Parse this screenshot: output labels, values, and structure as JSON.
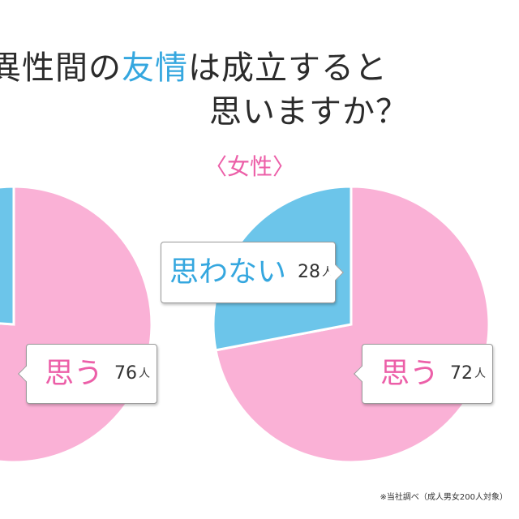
{
  "title": {
    "line1_seg1": "異性間",
    "line1_seg2": "の",
    "line1_seg3": "友情",
    "line1_seg4": "は成立すると",
    "line2": "思いますか？"
  },
  "colors": {
    "think": "#fab1d6",
    "not_think": "#6cc5ea",
    "pink_text": "#ec5fa8",
    "blue_text": "#35a7df"
  },
  "chart_data": [
    {
      "type": "pie",
      "title": "",
      "slices": [
        {
          "label": "思う",
          "value": 76,
          "unit": "人",
          "color": "#fab1d6"
        },
        {
          "label": "",
          "value": 24,
          "unit": "",
          "color": "#6cc5ea"
        }
      ]
    },
    {
      "type": "pie",
      "title": "〈女性〉",
      "slices": [
        {
          "label": "思う",
          "value": 72,
          "unit": "人",
          "color": "#fab1d6"
        },
        {
          "label": "思わない",
          "value": 28,
          "unit": "人",
          "color": "#6cc5ea"
        }
      ]
    }
  ],
  "source_note": "※当社調べ（成人男女200人対象）"
}
